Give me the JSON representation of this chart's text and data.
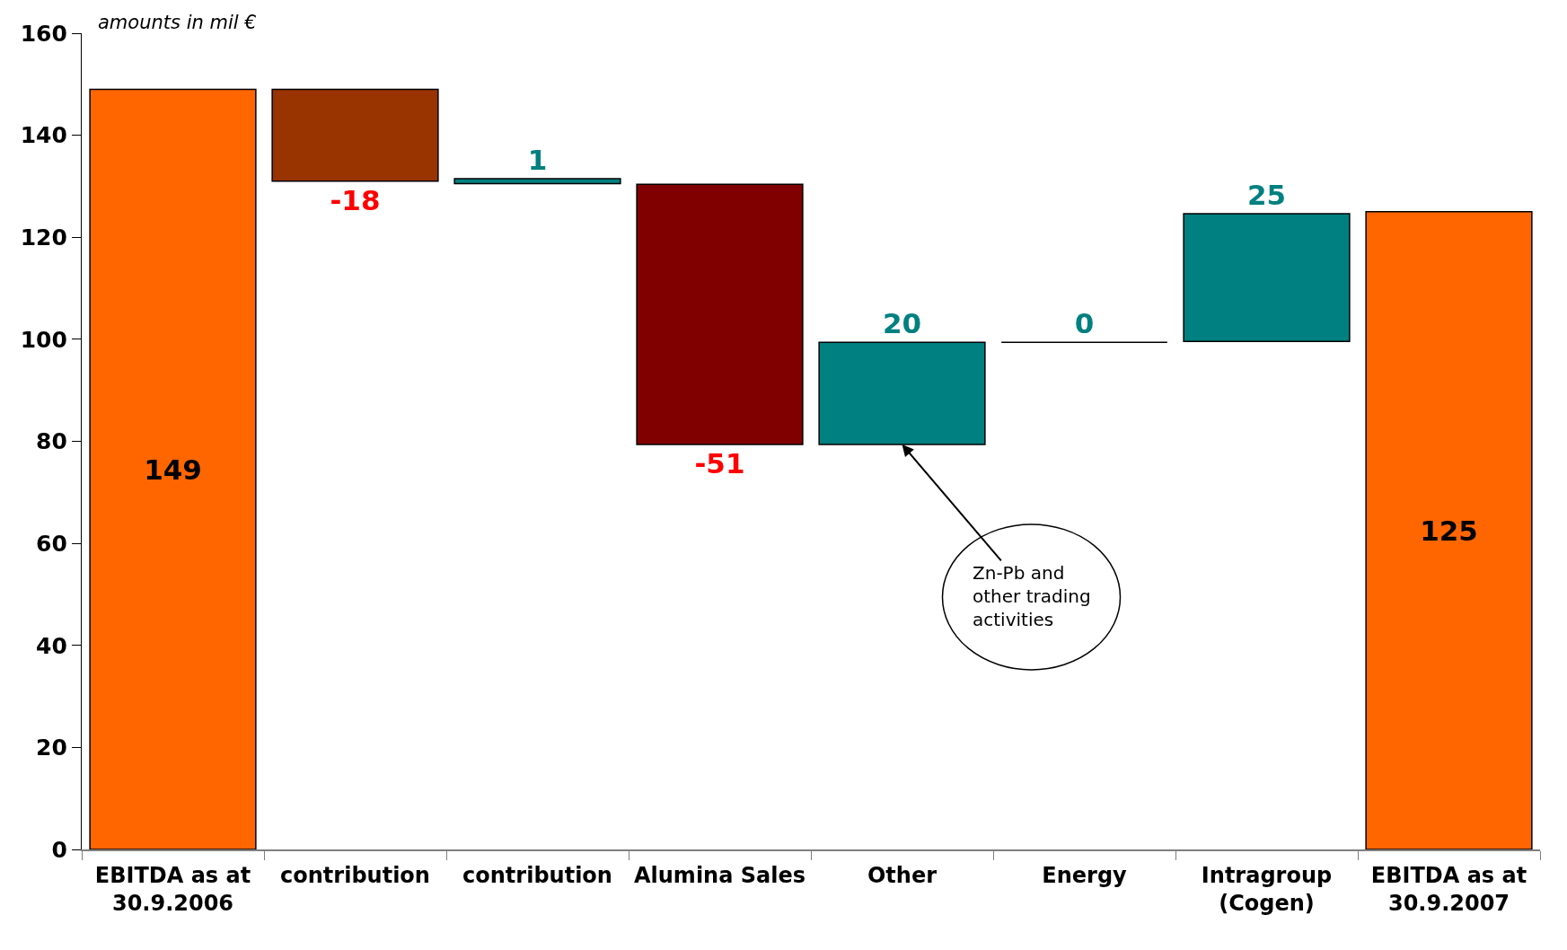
{
  "chart_data": {
    "type": "bar",
    "ylabel": "amounts in mil €",
    "categories": [
      "EBITDA as at\n30.9.2006",
      "contribution",
      "contribution",
      "Alumina Sales",
      "Other",
      "Energy",
      "Intragroup\n(Cogen)",
      "EBITDA as at\n30.9.2007"
    ],
    "values": [
      149,
      -18,
      1,
      -51,
      20,
      0,
      25,
      125
    ],
    "base": [
      null,
      149,
      130.5,
      130.4,
      79.4,
      99.4,
      99.6,
      null
    ],
    "colors": [
      "#ff6600",
      "#993300",
      "#008080",
      "#800000",
      "#008080",
      "#000000",
      "#008080",
      "#ff6600"
    ],
    "data_labels": true,
    "ylim": [
      0,
      160
    ],
    "yticks": [
      0,
      20,
      40,
      60,
      80,
      100,
      120,
      140,
      160
    ],
    "annotations": [
      {
        "text": "Zn-Pb and\nother trading\nactivities",
        "x": "Other",
        "y": 79.4
      }
    ]
  }
}
